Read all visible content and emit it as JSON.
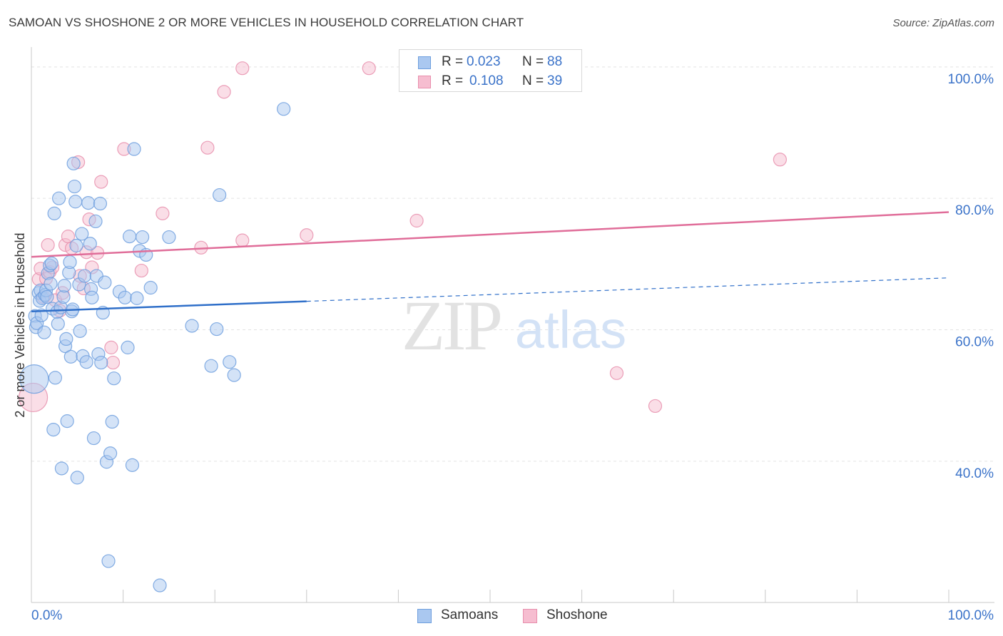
{
  "title": "SAMOAN VS SHOSHONE 2 OR MORE VEHICLES IN HOUSEHOLD CORRELATION CHART",
  "source": "Source: ZipAtlas.com",
  "watermark": {
    "zip": "ZIP",
    "atlas": "atlas"
  },
  "legend": {
    "r_label": "R =",
    "n_label": "N =",
    "series": [
      {
        "name": "Samoans",
        "r": "0.023",
        "n": "88"
      },
      {
        "name": "Shoshone",
        "r": "0.108",
        "n": "39"
      }
    ]
  },
  "colors": {
    "samoans_fill": "#aac8f0",
    "samoans_stroke": "#6f9fde",
    "samoans_line": "#2f6fc9",
    "shoshone_fill": "#f6bdd0",
    "shoshone_stroke": "#e88fad",
    "shoshone_line": "#e06d99",
    "axis_label": "#3b73c9",
    "grid": "#e3e3e3"
  },
  "chart_data": {
    "type": "scatter",
    "title": "SAMOAN VS SHOSHONE 2 OR MORE VEHICLES IN HOUSEHOLD CORRELATION CHART",
    "xlabel": "",
    "ylabel": "2 or more Vehicles in Household",
    "xlim": [
      0,
      100
    ],
    "ylim": [
      18.5,
      101.5
    ],
    "x_tick_labels": [
      "0.0%",
      "100.0%"
    ],
    "y_ticks": [
      40,
      60,
      80,
      100
    ],
    "y_tick_labels": [
      "40.0%",
      "60.0%",
      "80.0%",
      "100.0%"
    ],
    "grid": true,
    "series": [
      {
        "name": "Samoans",
        "r": 0.023,
        "n": 88,
        "trend": {
          "x0": 0,
          "y0": 62.8,
          "x1": 100,
          "y1": 67.9,
          "solid_until": 30
        },
        "points": [
          {
            "x": 0.3,
            "y": 52.5,
            "big": true
          },
          {
            "x": 0.4,
            "y": 62.1
          },
          {
            "x": 0.5,
            "y": 60.4
          },
          {
            "x": 0.6,
            "y": 61.0
          },
          {
            "x": 0.8,
            "y": 65.6
          },
          {
            "x": 0.9,
            "y": 64.4
          },
          {
            "x": 1.0,
            "y": 66.0
          },
          {
            "x": 1.1,
            "y": 62.2
          },
          {
            "x": 1.2,
            "y": 64.8
          },
          {
            "x": 1.4,
            "y": 59.6
          },
          {
            "x": 1.5,
            "y": 65.3
          },
          {
            "x": 1.6,
            "y": 66.0
          },
          {
            "x": 1.7,
            "y": 65.0
          },
          {
            "x": 1.8,
            "y": 68.6
          },
          {
            "x": 2.0,
            "y": 69.8
          },
          {
            "x": 2.1,
            "y": 67.0
          },
          {
            "x": 2.2,
            "y": 70.1
          },
          {
            "x": 2.3,
            "y": 63.2
          },
          {
            "x": 2.4,
            "y": 44.8
          },
          {
            "x": 2.5,
            "y": 77.7
          },
          {
            "x": 2.6,
            "y": 52.7
          },
          {
            "x": 2.8,
            "y": 62.7
          },
          {
            "x": 2.9,
            "y": 60.9
          },
          {
            "x": 3.0,
            "y": 80.0
          },
          {
            "x": 3.2,
            "y": 63.4
          },
          {
            "x": 3.3,
            "y": 38.9
          },
          {
            "x": 3.5,
            "y": 65.0
          },
          {
            "x": 3.6,
            "y": 66.7
          },
          {
            "x": 3.7,
            "y": 57.5
          },
          {
            "x": 3.8,
            "y": 58.6
          },
          {
            "x": 3.9,
            "y": 46.1
          },
          {
            "x": 4.1,
            "y": 68.7
          },
          {
            "x": 4.2,
            "y": 70.3
          },
          {
            "x": 4.3,
            "y": 55.9
          },
          {
            "x": 4.4,
            "y": 62.8
          },
          {
            "x": 4.5,
            "y": 63.1
          },
          {
            "x": 4.6,
            "y": 85.3
          },
          {
            "x": 4.7,
            "y": 81.8
          },
          {
            "x": 4.8,
            "y": 79.5
          },
          {
            "x": 4.9,
            "y": 72.8
          },
          {
            "x": 5.0,
            "y": 37.5
          },
          {
            "x": 5.2,
            "y": 66.9
          },
          {
            "x": 5.3,
            "y": 59.8
          },
          {
            "x": 5.5,
            "y": 74.6
          },
          {
            "x": 5.6,
            "y": 56.0
          },
          {
            "x": 5.8,
            "y": 68.2
          },
          {
            "x": 6.0,
            "y": 55.1
          },
          {
            "x": 6.2,
            "y": 79.3
          },
          {
            "x": 6.4,
            "y": 73.1
          },
          {
            "x": 6.5,
            "y": 66.2
          },
          {
            "x": 6.6,
            "y": 64.9
          },
          {
            "x": 6.8,
            "y": 43.5
          },
          {
            "x": 7.0,
            "y": 76.5
          },
          {
            "x": 7.1,
            "y": 68.2
          },
          {
            "x": 7.3,
            "y": 56.3
          },
          {
            "x": 7.5,
            "y": 79.2
          },
          {
            "x": 7.6,
            "y": 55.0
          },
          {
            "x": 7.8,
            "y": 62.6
          },
          {
            "x": 8.0,
            "y": 67.2
          },
          {
            "x": 8.2,
            "y": 39.9
          },
          {
            "x": 8.4,
            "y": 24.8
          },
          {
            "x": 8.6,
            "y": 41.2
          },
          {
            "x": 8.8,
            "y": 46.0
          },
          {
            "x": 9.0,
            "y": 52.6
          },
          {
            "x": 9.6,
            "y": 65.8
          },
          {
            "x": 10.2,
            "y": 64.9
          },
          {
            "x": 10.5,
            "y": 57.3
          },
          {
            "x": 10.7,
            "y": 74.2
          },
          {
            "x": 11.0,
            "y": 39.4
          },
          {
            "x": 11.2,
            "y": 87.5
          },
          {
            "x": 11.5,
            "y": 64.8
          },
          {
            "x": 11.8,
            "y": 72.0
          },
          {
            "x": 12.1,
            "y": 74.1
          },
          {
            "x": 12.5,
            "y": 71.4
          },
          {
            "x": 13.0,
            "y": 66.4
          },
          {
            "x": 14.0,
            "y": 21.1
          },
          {
            "x": 15.0,
            "y": 74.1
          },
          {
            "x": 17.5,
            "y": 60.6
          },
          {
            "x": 20.2,
            "y": 60.1
          },
          {
            "x": 20.5,
            "y": 80.5
          },
          {
            "x": 19.6,
            "y": 54.5
          },
          {
            "x": 21.6,
            "y": 55.1
          },
          {
            "x": 22.1,
            "y": 53.1
          },
          {
            "x": 27.5,
            "y": 93.6
          }
        ]
      },
      {
        "name": "Shoshone",
        "r": 0.108,
        "n": 39,
        "trend": {
          "x0": 0,
          "y0": 71.1,
          "x1": 100,
          "y1": 77.9
        },
        "points": [
          {
            "x": 0.2,
            "y": 49.7,
            "big": true
          },
          {
            "x": 0.8,
            "y": 67.7
          },
          {
            "x": 1.0,
            "y": 69.3
          },
          {
            "x": 1.3,
            "y": 65.0
          },
          {
            "x": 1.6,
            "y": 67.8
          },
          {
            "x": 1.8,
            "y": 72.9
          },
          {
            "x": 2.0,
            "y": 68.8
          },
          {
            "x": 2.3,
            "y": 69.5
          },
          {
            "x": 2.6,
            "y": 64.5
          },
          {
            "x": 3.1,
            "y": 62.9
          },
          {
            "x": 3.4,
            "y": 65.6
          },
          {
            "x": 3.7,
            "y": 72.9
          },
          {
            "x": 4.0,
            "y": 74.2
          },
          {
            "x": 4.4,
            "y": 72.4
          },
          {
            "x": 5.1,
            "y": 85.5
          },
          {
            "x": 5.3,
            "y": 68.2
          },
          {
            "x": 5.7,
            "y": 66.3
          },
          {
            "x": 6.0,
            "y": 71.8
          },
          {
            "x": 6.3,
            "y": 76.8
          },
          {
            "x": 6.6,
            "y": 69.5
          },
          {
            "x": 7.2,
            "y": 71.7
          },
          {
            "x": 7.6,
            "y": 82.5
          },
          {
            "x": 8.7,
            "y": 57.3
          },
          {
            "x": 8.9,
            "y": 55.0
          },
          {
            "x": 10.1,
            "y": 87.5
          },
          {
            "x": 12.0,
            "y": 69.0
          },
          {
            "x": 14.3,
            "y": 77.7
          },
          {
            "x": 18.5,
            "y": 72.5
          },
          {
            "x": 19.2,
            "y": 87.7
          },
          {
            "x": 21.0,
            "y": 96.2
          },
          {
            "x": 23.0,
            "y": 73.6
          },
          {
            "x": 23.0,
            "y": 99.8
          },
          {
            "x": 30.0,
            "y": 74.4
          },
          {
            "x": 36.8,
            "y": 99.8
          },
          {
            "x": 42.0,
            "y": 76.6
          },
          {
            "x": 63.8,
            "y": 53.4
          },
          {
            "x": 68.0,
            "y": 48.4
          },
          {
            "x": 81.6,
            "y": 85.9
          }
        ]
      }
    ]
  }
}
